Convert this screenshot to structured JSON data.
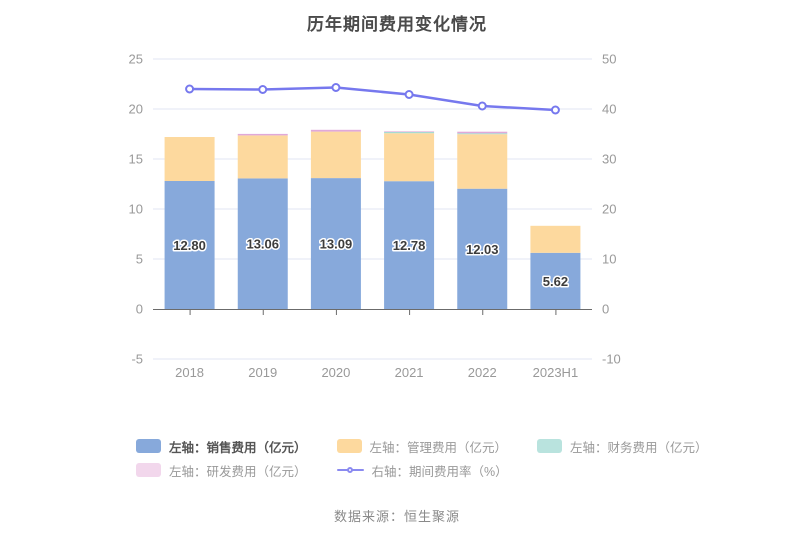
{
  "source": "数据来源：恒生聚源",
  "chart_data": {
    "type": "bar+line",
    "title": "历年期间费用变化情况",
    "categories": [
      "2018",
      "2019",
      "2020",
      "2021",
      "2022",
      "2023H1"
    ],
    "series": [
      {
        "name": "左轴：销售费用（亿元）",
        "type": "bar",
        "axis": "left",
        "color": "#87a9db",
        "values": [
          12.8,
          13.06,
          13.09,
          12.78,
          12.03,
          5.62
        ],
        "labels": [
          "12.80",
          "13.06",
          "13.09",
          "12.78",
          "12.03",
          "5.62"
        ]
      },
      {
        "name": "左轴：管理费用（亿元）",
        "type": "bar",
        "axis": "left",
        "color": "#fdd99e",
        "values": [
          4.4,
          4.3,
          4.65,
          4.8,
          5.45,
          2.7
        ]
      },
      {
        "name": "左轴：财务费用（亿元）",
        "type": "bar",
        "axis": "left",
        "color": "#a5dad4",
        "legend_color": "#b9e3de",
        "values": [
          0,
          0,
          0,
          0.12,
          0.1,
          0
        ]
      },
      {
        "name": "左轴：研发费用（亿元）",
        "type": "bar",
        "axis": "left",
        "color": "#e0a9d9",
        "legend_color": "#f2d7ec",
        "values": [
          0,
          0.15,
          0.18,
          0.06,
          0.15,
          0
        ]
      },
      {
        "name": "右轴：期间费用率（%）",
        "type": "line",
        "axis": "right",
        "color": "#7678ee",
        "values": [
          44.0,
          43.9,
          44.3,
          42.9,
          40.6,
          39.8
        ]
      }
    ],
    "left_axis": {
      "min": -5,
      "max": 25,
      "ticks": [
        25,
        20,
        15,
        10,
        5,
        0,
        -5
      ]
    },
    "right_axis": {
      "min": -10,
      "max": 50,
      "ticks": [
        50,
        40,
        30,
        20,
        10,
        0,
        -10
      ]
    },
    "legend_position": "bottom",
    "grid": true,
    "grid_color": "#e1e6f3",
    "axis_line_color": "#6b6b6b",
    "axis_label_color": "#999999",
    "bar_label_color": "#3c3c3c"
  }
}
